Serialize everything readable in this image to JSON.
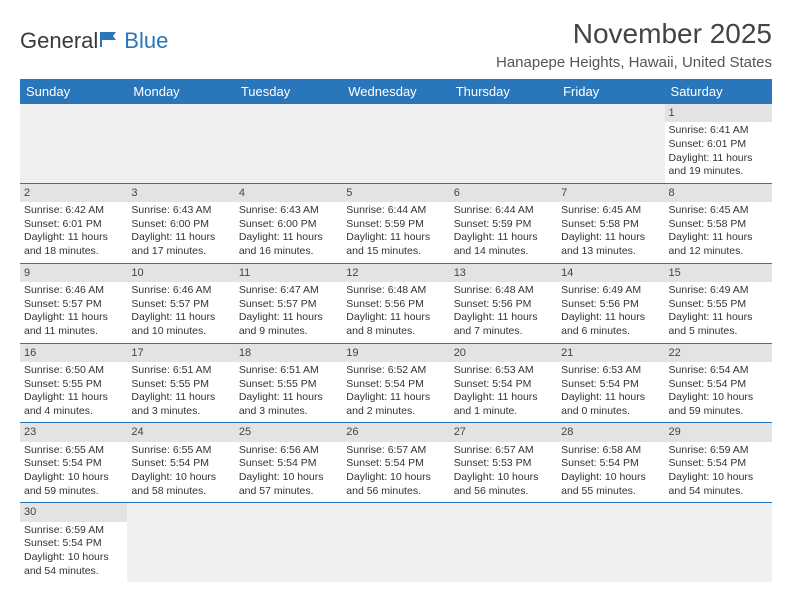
{
  "logo": {
    "text_part1": "General",
    "text_part2": "Blue"
  },
  "title": "November 2025",
  "subtitle": "Hanapepe Heights, Hawaii, United States",
  "colors": {
    "header_bg": "#2a76ba",
    "daynum_bg": "#e3e3e3",
    "blank_bg": "#f0f0f0",
    "row_border": "#2a76ba"
  },
  "weekdays": [
    "Sunday",
    "Monday",
    "Tuesday",
    "Wednesday",
    "Thursday",
    "Friday",
    "Saturday"
  ],
  "weeks": [
    [
      {
        "blank": true
      },
      {
        "blank": true
      },
      {
        "blank": true
      },
      {
        "blank": true
      },
      {
        "blank": true
      },
      {
        "blank": true
      },
      {
        "day": "1",
        "sunrise": "Sunrise: 6:41 AM",
        "sunset": "Sunset: 6:01 PM",
        "daylight1": "Daylight: 11 hours",
        "daylight2": "and 19 minutes."
      }
    ],
    [
      {
        "day": "2",
        "sunrise": "Sunrise: 6:42 AM",
        "sunset": "Sunset: 6:01 PM",
        "daylight1": "Daylight: 11 hours",
        "daylight2": "and 18 minutes."
      },
      {
        "day": "3",
        "sunrise": "Sunrise: 6:43 AM",
        "sunset": "Sunset: 6:00 PM",
        "daylight1": "Daylight: 11 hours",
        "daylight2": "and 17 minutes."
      },
      {
        "day": "4",
        "sunrise": "Sunrise: 6:43 AM",
        "sunset": "Sunset: 6:00 PM",
        "daylight1": "Daylight: 11 hours",
        "daylight2": "and 16 minutes."
      },
      {
        "day": "5",
        "sunrise": "Sunrise: 6:44 AM",
        "sunset": "Sunset: 5:59 PM",
        "daylight1": "Daylight: 11 hours",
        "daylight2": "and 15 minutes."
      },
      {
        "day": "6",
        "sunrise": "Sunrise: 6:44 AM",
        "sunset": "Sunset: 5:59 PM",
        "daylight1": "Daylight: 11 hours",
        "daylight2": "and 14 minutes."
      },
      {
        "day": "7",
        "sunrise": "Sunrise: 6:45 AM",
        "sunset": "Sunset: 5:58 PM",
        "daylight1": "Daylight: 11 hours",
        "daylight2": "and 13 minutes."
      },
      {
        "day": "8",
        "sunrise": "Sunrise: 6:45 AM",
        "sunset": "Sunset: 5:58 PM",
        "daylight1": "Daylight: 11 hours",
        "daylight2": "and 12 minutes."
      }
    ],
    [
      {
        "day": "9",
        "sunrise": "Sunrise: 6:46 AM",
        "sunset": "Sunset: 5:57 PM",
        "daylight1": "Daylight: 11 hours",
        "daylight2": "and 11 minutes."
      },
      {
        "day": "10",
        "sunrise": "Sunrise: 6:46 AM",
        "sunset": "Sunset: 5:57 PM",
        "daylight1": "Daylight: 11 hours",
        "daylight2": "and 10 minutes."
      },
      {
        "day": "11",
        "sunrise": "Sunrise: 6:47 AM",
        "sunset": "Sunset: 5:57 PM",
        "daylight1": "Daylight: 11 hours",
        "daylight2": "and 9 minutes."
      },
      {
        "day": "12",
        "sunrise": "Sunrise: 6:48 AM",
        "sunset": "Sunset: 5:56 PM",
        "daylight1": "Daylight: 11 hours",
        "daylight2": "and 8 minutes."
      },
      {
        "day": "13",
        "sunrise": "Sunrise: 6:48 AM",
        "sunset": "Sunset: 5:56 PM",
        "daylight1": "Daylight: 11 hours",
        "daylight2": "and 7 minutes."
      },
      {
        "day": "14",
        "sunrise": "Sunrise: 6:49 AM",
        "sunset": "Sunset: 5:56 PM",
        "daylight1": "Daylight: 11 hours",
        "daylight2": "and 6 minutes."
      },
      {
        "day": "15",
        "sunrise": "Sunrise: 6:49 AM",
        "sunset": "Sunset: 5:55 PM",
        "daylight1": "Daylight: 11 hours",
        "daylight2": "and 5 minutes."
      }
    ],
    [
      {
        "day": "16",
        "sunrise": "Sunrise: 6:50 AM",
        "sunset": "Sunset: 5:55 PM",
        "daylight1": "Daylight: 11 hours",
        "daylight2": "and 4 minutes."
      },
      {
        "day": "17",
        "sunrise": "Sunrise: 6:51 AM",
        "sunset": "Sunset: 5:55 PM",
        "daylight1": "Daylight: 11 hours",
        "daylight2": "and 3 minutes."
      },
      {
        "day": "18",
        "sunrise": "Sunrise: 6:51 AM",
        "sunset": "Sunset: 5:55 PM",
        "daylight1": "Daylight: 11 hours",
        "daylight2": "and 3 minutes."
      },
      {
        "day": "19",
        "sunrise": "Sunrise: 6:52 AM",
        "sunset": "Sunset: 5:54 PM",
        "daylight1": "Daylight: 11 hours",
        "daylight2": "and 2 minutes."
      },
      {
        "day": "20",
        "sunrise": "Sunrise: 6:53 AM",
        "sunset": "Sunset: 5:54 PM",
        "daylight1": "Daylight: 11 hours",
        "daylight2": "and 1 minute."
      },
      {
        "day": "21",
        "sunrise": "Sunrise: 6:53 AM",
        "sunset": "Sunset: 5:54 PM",
        "daylight1": "Daylight: 11 hours",
        "daylight2": "and 0 minutes."
      },
      {
        "day": "22",
        "sunrise": "Sunrise: 6:54 AM",
        "sunset": "Sunset: 5:54 PM",
        "daylight1": "Daylight: 10 hours",
        "daylight2": "and 59 minutes."
      }
    ],
    [
      {
        "day": "23",
        "sunrise": "Sunrise: 6:55 AM",
        "sunset": "Sunset: 5:54 PM",
        "daylight1": "Daylight: 10 hours",
        "daylight2": "and 59 minutes."
      },
      {
        "day": "24",
        "sunrise": "Sunrise: 6:55 AM",
        "sunset": "Sunset: 5:54 PM",
        "daylight1": "Daylight: 10 hours",
        "daylight2": "and 58 minutes."
      },
      {
        "day": "25",
        "sunrise": "Sunrise: 6:56 AM",
        "sunset": "Sunset: 5:54 PM",
        "daylight1": "Daylight: 10 hours",
        "daylight2": "and 57 minutes."
      },
      {
        "day": "26",
        "sunrise": "Sunrise: 6:57 AM",
        "sunset": "Sunset: 5:54 PM",
        "daylight1": "Daylight: 10 hours",
        "daylight2": "and 56 minutes."
      },
      {
        "day": "27",
        "sunrise": "Sunrise: 6:57 AM",
        "sunset": "Sunset: 5:53 PM",
        "daylight1": "Daylight: 10 hours",
        "daylight2": "and 56 minutes."
      },
      {
        "day": "28",
        "sunrise": "Sunrise: 6:58 AM",
        "sunset": "Sunset: 5:54 PM",
        "daylight1": "Daylight: 10 hours",
        "daylight2": "and 55 minutes."
      },
      {
        "day": "29",
        "sunrise": "Sunrise: 6:59 AM",
        "sunset": "Sunset: 5:54 PM",
        "daylight1": "Daylight: 10 hours",
        "daylight2": "and 54 minutes."
      }
    ],
    [
      {
        "day": "30",
        "sunrise": "Sunrise: 6:59 AM",
        "sunset": "Sunset: 5:54 PM",
        "daylight1": "Daylight: 10 hours",
        "daylight2": "and 54 minutes."
      },
      {
        "blank": true
      },
      {
        "blank": true
      },
      {
        "blank": true
      },
      {
        "blank": true
      },
      {
        "blank": true
      },
      {
        "blank": true
      }
    ]
  ]
}
